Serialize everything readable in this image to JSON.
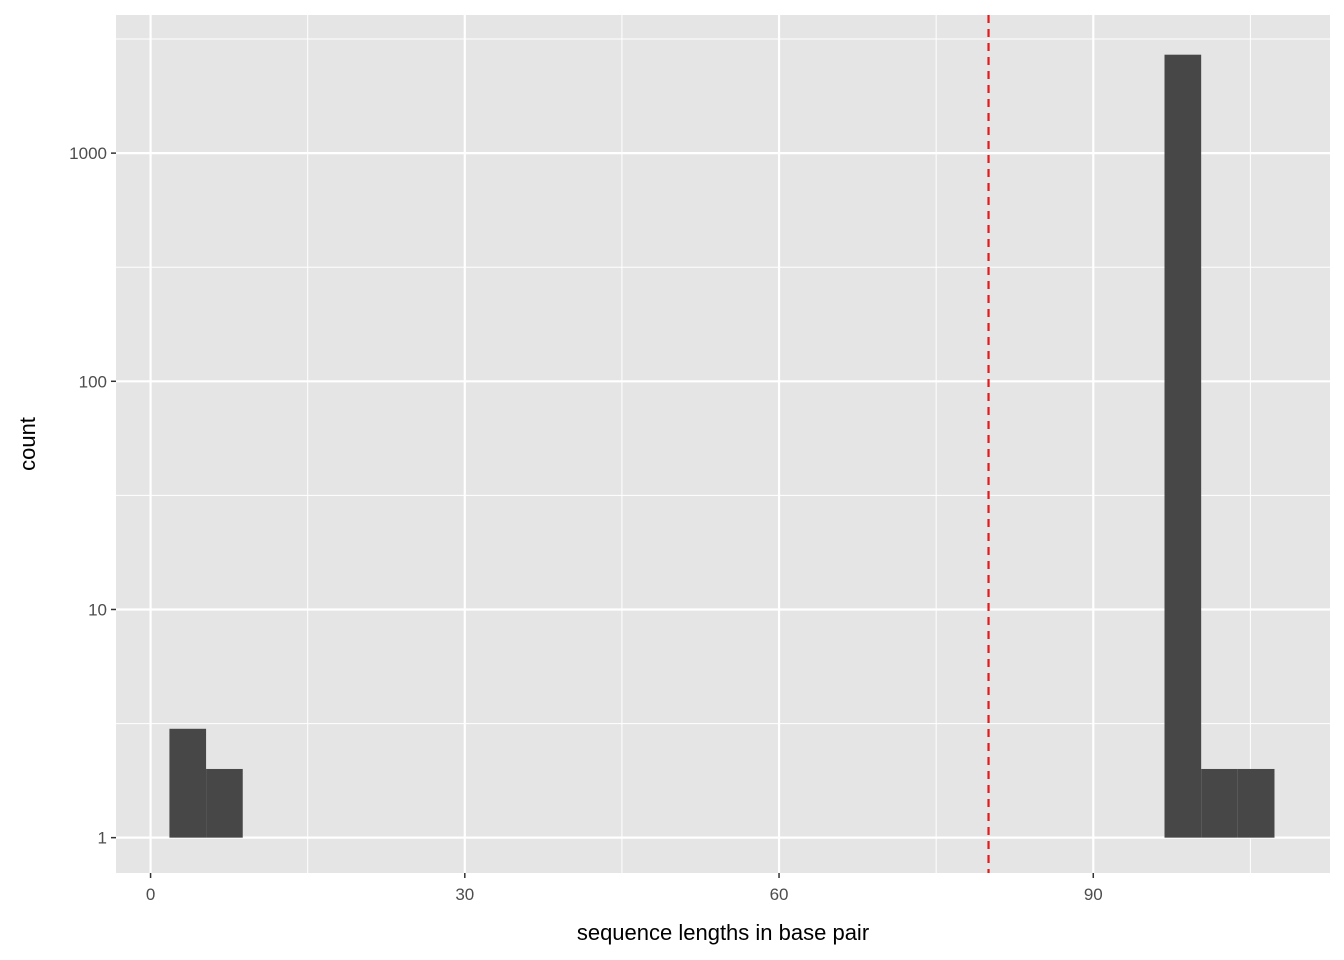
{
  "chart_data": {
    "type": "bar",
    "subtype": "histogram",
    "title": "",
    "xlabel": "sequence lengths in base pair",
    "ylabel": "count",
    "y_scale": "log10",
    "xlim": [
      -3.3,
      112.6
    ],
    "ylim": [
      0.7,
      4030
    ],
    "x_ticks": [
      0,
      30,
      60,
      90
    ],
    "x_tick_labels": [
      "0",
      "30",
      "60",
      "90"
    ],
    "y_ticks": [
      1,
      10,
      100,
      1000
    ],
    "y_tick_labels": [
      "1",
      "10",
      "100",
      "1000"
    ],
    "grid": true,
    "bins": [
      {
        "xmin": 1.8,
        "xmax": 5.3,
        "count": 3
      },
      {
        "xmin": 5.3,
        "xmax": 8.8,
        "count": 2
      },
      {
        "xmin": 96.8,
        "xmax": 100.3,
        "count": 2700
      },
      {
        "xmin": 100.3,
        "xmax": 103.8,
        "count": 2
      },
      {
        "xmin": 103.8,
        "xmax": 107.3,
        "count": 2
      }
    ],
    "reference_line": {
      "x": 80,
      "style": "dashed",
      "color": "#e41a1c"
    },
    "colors": {
      "bar": "#474747",
      "panel": "#e5e5e5",
      "grid": "#ffffff"
    }
  }
}
